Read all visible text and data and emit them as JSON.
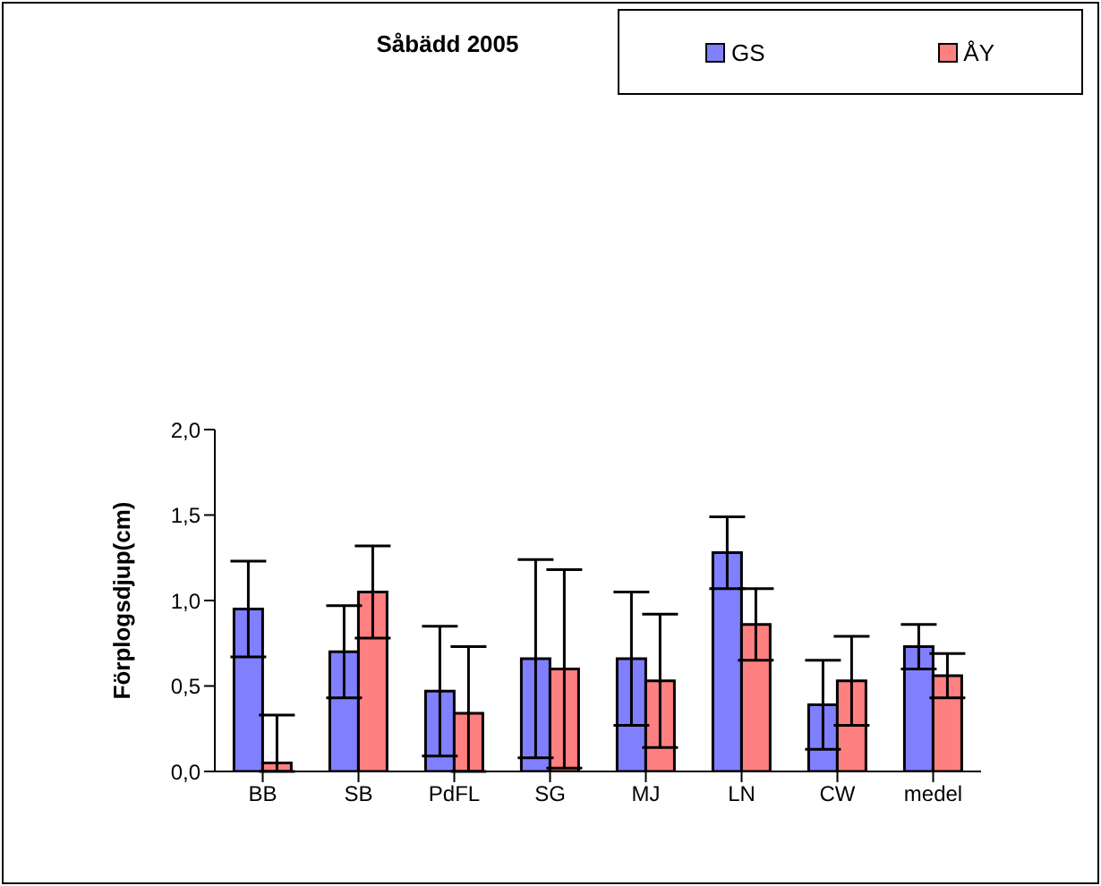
{
  "chart_data": {
    "type": "bar",
    "title": "Såbädd 2005",
    "ylabel": "Förplogsdjup(cm)",
    "categories": [
      "BB",
      "SB",
      "PdFL",
      "SG",
      "MJ",
      "LN",
      "CW",
      "medel"
    ],
    "series": [
      {
        "name": "GS",
        "color": "#8080ff",
        "values": [
          0.95,
          0.7,
          0.47,
          0.66,
          0.66,
          1.28,
          0.39,
          0.73
        ],
        "errors": [
          0.28,
          0.27,
          0.38,
          0.58,
          0.39,
          0.21,
          0.26,
          0.13
        ]
      },
      {
        "name": "ÅY",
        "color": "#ff8080",
        "values": [
          0.05,
          1.05,
          0.34,
          0.6,
          0.53,
          0.86,
          0.53,
          0.56
        ],
        "errors": [
          [
            0,
            0.33
          ],
          0.27,
          [
            0,
            0.73
          ],
          0.58,
          0.39,
          0.21,
          0.26,
          0.13
        ]
      }
    ],
    "ylim": [
      0,
      2
    ],
    "yticks": [
      {
        "value": 0,
        "label": "0,0"
      },
      {
        "value": 0.5,
        "label": "0,5"
      },
      {
        "value": 1,
        "label": "1,0"
      },
      {
        "value": 1.5,
        "label": "1,5"
      },
      {
        "value": 2,
        "label": "2,0"
      }
    ],
    "grid": false,
    "legend": "top right"
  }
}
